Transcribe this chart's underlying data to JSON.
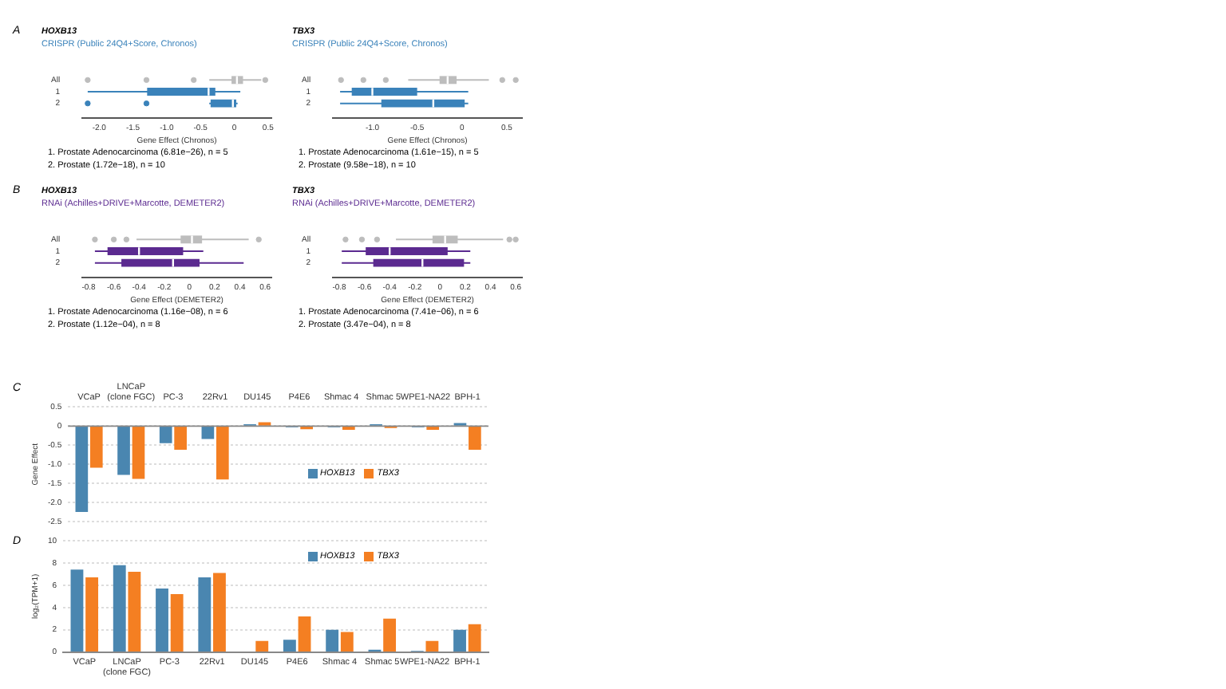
{
  "chart_data": [
    {
      "type": "box",
      "title": "HOXB13",
      "subtitle": "CRISPR (Public 24Q4+Score, Chronos)",
      "xlabel": "Gene Effect (Chronos)",
      "orientation": "horizontal",
      "categories": [
        "All",
        "1",
        "2"
      ],
      "colors": [
        "#bdbdbd",
        "#3a82ba",
        "#3a82ba"
      ],
      "boxes": [
        {
          "low": -0.37,
          "q1": -0.04,
          "median": 0.04,
          "q3": 0.13,
          "high": 0.4,
          "outliers": [
            -2.17,
            -1.3,
            -0.6,
            0.46
          ]
        },
        {
          "low": -2.17,
          "q1": -1.29,
          "median": -0.38,
          "q3": -0.28,
          "high": 0.09
        },
        {
          "low": -0.37,
          "q1": -0.35,
          "median": -0.02,
          "q3": 0.03,
          "high": 0.05,
          "outliers": [
            -2.17,
            -1.3
          ]
        }
      ],
      "xlim": [
        -2.25,
        0.55
      ],
      "xticks": [
        {
          "value": -2,
          "label": "-2.0"
        },
        {
          "value": -1.5,
          "label": "-1.5"
        },
        {
          "value": -1,
          "label": "-1.0"
        },
        {
          "value": -0.5,
          "label": "-0.5"
        },
        0,
        0.5
      ],
      "annotations": [
        "A",
        "1. Prostate Adenocarcinoma (6.81e−26), n = 5",
        "2. Prostate (1.72e−18), n = 10"
      ]
    },
    {
      "type": "box",
      "title": "TBX3",
      "subtitle": "CRISPR (Public 24Q4+Score, Chronos)",
      "xlabel": "Gene Effect (Chronos)",
      "orientation": "horizontal",
      "categories": [
        "All",
        "1",
        "2"
      ],
      "colors": [
        "#bdbdbd",
        "#3a82ba",
        "#3a82ba"
      ],
      "boxes": [
        {
          "low": -0.6,
          "q1": -0.25,
          "median": -0.16,
          "q3": -0.06,
          "high": 0.3,
          "outliers": [
            -1.35,
            -1.1,
            -0.85,
            0.45,
            0.6
          ]
        },
        {
          "low": -1.36,
          "q1": -1.23,
          "median": -1.0,
          "q3": -0.5,
          "high": 0.07
        },
        {
          "low": -1.36,
          "q1": -0.9,
          "median": -0.32,
          "q3": 0.03,
          "high": 0.07
        }
      ],
      "xlim": [
        -1.44,
        0.67
      ],
      "xticks": [
        {
          "value": -1,
          "label": "-1.0"
        },
        {
          "value": -0.5,
          "label": "-0.5"
        },
        0,
        0.5
      ],
      "annotations": [
        "1. Prostate Adenocarcinoma (1.61e−15), n = 5",
        "2. Prostate (9.58e−18), n = 10"
      ]
    },
    {
      "type": "box",
      "title": "HOXB13",
      "subtitle": "RNAi (Achilles+DRIVE+Marcotte, DEMETER2)",
      "xlabel": "Gene Effect (DEMETER2)",
      "orientation": "horizontal",
      "categories": [
        "All",
        "1",
        "2"
      ],
      "colors": [
        "#bdbdbd",
        "#5b2a90",
        "#5b2a90"
      ],
      "boxes": [
        {
          "low": -0.42,
          "q1": -0.07,
          "median": 0.02,
          "q3": 0.1,
          "high": 0.47,
          "outliers": [
            -0.75,
            -0.6,
            -0.5,
            0.55
          ]
        },
        {
          "low": -0.75,
          "q1": -0.65,
          "median": -0.4,
          "q3": -0.05,
          "high": 0.11
        },
        {
          "low": -0.75,
          "q1": -0.54,
          "median": -0.13,
          "q3": 0.08,
          "high": 0.43
        }
      ],
      "xlim": [
        -0.85,
        0.65
      ],
      "xticks": [
        -0.8,
        -0.6,
        -0.4,
        -0.2,
        0,
        0.2,
        0.4,
        0.6
      ],
      "annotations": [
        "B",
        "1. Prostate Adenocarcinoma (1.16e−08), n = 6",
        "2. Prostate (1.12e−04), n = 8"
      ]
    },
    {
      "type": "box",
      "title": "TBX3",
      "subtitle": "RNAi (Achilles+DRIVE+Marcotte, DEMETER2)",
      "xlabel": "Gene Effect (DEMETER2)",
      "orientation": "horizontal",
      "categories": [
        "All",
        "1",
        "2"
      ],
      "colors": [
        "#bdbdbd",
        "#5b2a90",
        "#5b2a90"
      ],
      "boxes": [
        {
          "low": -0.35,
          "q1": -0.06,
          "median": 0.04,
          "q3": 0.14,
          "high": 0.5,
          "outliers": [
            -0.75,
            -0.62,
            -0.5,
            0.55,
            0.6
          ]
        },
        {
          "low": -0.78,
          "q1": -0.59,
          "median": -0.4,
          "q3": 0.06,
          "high": 0.24
        },
        {
          "low": -0.78,
          "q1": -0.53,
          "median": -0.14,
          "q3": 0.19,
          "high": 0.24
        }
      ],
      "xlim": [
        -0.85,
        0.65
      ],
      "xticks": [
        -0.8,
        -0.6,
        -0.4,
        -0.2,
        0,
        0.2,
        0.4,
        0.6
      ],
      "annotations": [
        "1. Prostate Adenocarcinoma (7.41e−06), n = 6",
        "2. Prostate (3.47e−04), n = 8"
      ]
    },
    {
      "type": "bar",
      "ylabel": "Gene Effect",
      "categories": [
        "VCaP",
        "LNCaP (clone FGC)",
        "PC-3",
        "22Rv1",
        "DU145",
        "P4E6",
        "Shmac 4",
        "Shmac 5",
        "WPE1-NA22",
        "BPH-1"
      ],
      "series": [
        {
          "name": "HOXB13",
          "color": "#4a86b0",
          "values": [
            -2.25,
            -1.28,
            -0.45,
            -0.34,
            0.05,
            -0.03,
            -0.03,
            0.05,
            -0.03,
            0.08
          ]
        },
        {
          "name": "TBX3",
          "color": "#f47f22",
          "values": [
            -1.09,
            -1.38,
            -0.62,
            -1.4,
            0.1,
            -0.08,
            -0.1,
            -0.05,
            -0.1,
            -0.62
          ]
        }
      ],
      "ylim": [
        -2.5,
        0.5
      ],
      "yticks": [
        {
          "value": -2.5,
          "label": "-2.5"
        },
        {
          "value": -2,
          "label": "-2.0"
        },
        {
          "value": -1.5,
          "label": "-1.5"
        },
        {
          "value": -1,
          "label": "-1.0"
        },
        {
          "value": -0.5,
          "label": "-0.5"
        },
        0,
        0.5
      ],
      "grid": "y",
      "legend": "bottom right",
      "annotations": [
        "C"
      ]
    },
    {
      "type": "bar",
      "ylabel": "log₂(TPM+1)",
      "categories": [
        "VCaP",
        "LNCaP (clone FGC)",
        "PC-3",
        "22Rv1",
        "DU145",
        "P4E6",
        "Shmac 4",
        "Shmac 5",
        "WPE1-NA22",
        "BPH-1"
      ],
      "series": [
        {
          "name": "HOXB13",
          "color": "#4a86b0",
          "values": [
            7.4,
            7.8,
            5.7,
            6.7,
            0,
            1.1,
            2.0,
            0.2,
            0.1,
            2.0
          ]
        },
        {
          "name": "TBX3",
          "color": "#f47f22",
          "values": [
            6.7,
            7.2,
            5.2,
            7.1,
            1.0,
            3.2,
            1.8,
            3.0,
            1.0,
            2.5
          ]
        }
      ],
      "ylim": [
        0,
        10
      ],
      "yticks": [
        0,
        2,
        4,
        6,
        8,
        10
      ],
      "grid": "y",
      "legend": "top right",
      "annotations": [
        "D"
      ]
    }
  ]
}
